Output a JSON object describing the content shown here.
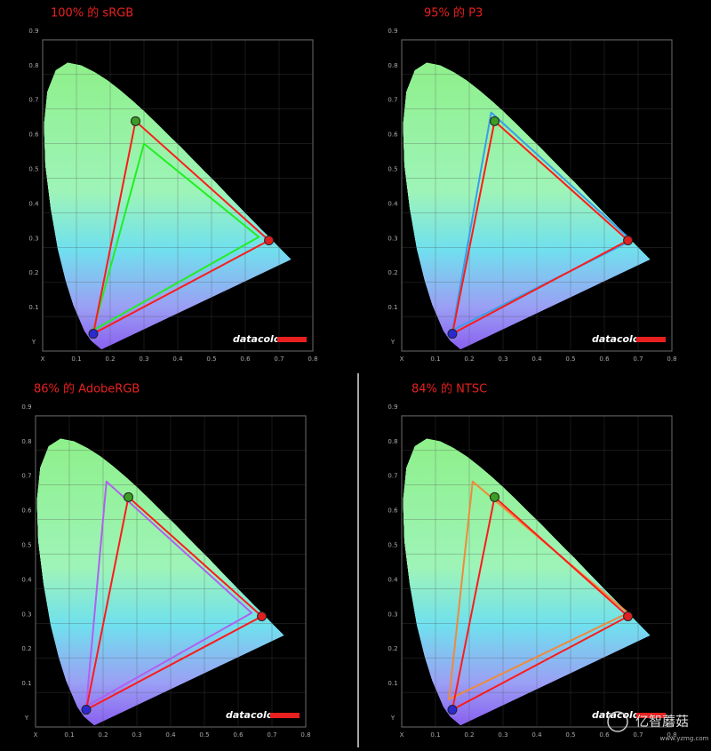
{
  "chart_data": [
    {
      "type": "gamut",
      "title": "100% 的 sRGB",
      "logo": "datacolor",
      "xlim": [
        0,
        0.8
      ],
      "ylim": [
        0,
        0.9
      ],
      "xticks": [
        {
          "value": 0,
          "label": "X"
        },
        0.1,
        0.2,
        0.3,
        0.4,
        0.5,
        0.6,
        0.7,
        0.8
      ],
      "yticks": [
        {
          "value": 0,
          "label": "Y"
        },
        0.1,
        0.2,
        0.3,
        0.4,
        0.5,
        0.6,
        0.7,
        0.8,
        0.9
      ],
      "series": [
        {
          "color": "#ff1a1a",
          "marker_colors": [
            "#e02020",
            "#3c9c24",
            "#2a2ad0"
          ],
          "x": [
            0.67,
            0.275,
            0.15
          ],
          "values": [
            0.32,
            0.665,
            0.05
          ]
        },
        {
          "color": "#22ee22",
          "x": [
            0.64,
            0.3,
            0.15
          ],
          "values": [
            0.33,
            0.6,
            0.06
          ]
        }
      ]
    },
    {
      "type": "gamut",
      "title": "95% 的 P3",
      "logo": "datacolor",
      "xlim": [
        0,
        0.8
      ],
      "ylim": [
        0,
        0.9
      ],
      "xticks": [
        {
          "value": 0,
          "label": "X"
        },
        0.1,
        0.2,
        0.3,
        0.4,
        0.5,
        0.6,
        0.7,
        0.8
      ],
      "yticks": [
        {
          "value": 0,
          "label": "Y"
        },
        0.1,
        0.2,
        0.3,
        0.4,
        0.5,
        0.6,
        0.7,
        0.8,
        0.9
      ],
      "series": [
        {
          "color": "#ff1a1a",
          "marker_colors": [
            "#e02020",
            "#3c9c24",
            "#2a2ad0"
          ],
          "x": [
            0.67,
            0.275,
            0.15
          ],
          "values": [
            0.32,
            0.665,
            0.05
          ]
        },
        {
          "color": "#3a9ee8",
          "x": [
            0.68,
            0.265,
            0.15
          ],
          "values": [
            0.32,
            0.69,
            0.06
          ]
        }
      ]
    },
    {
      "type": "gamut",
      "title": "86% 的 AdobeRGB",
      "logo": "datacolor",
      "xlim": [
        0,
        0.8
      ],
      "ylim": [
        0,
        0.9
      ],
      "xticks": [
        {
          "value": 0,
          "label": "X"
        },
        0.1,
        0.2,
        0.3,
        0.4,
        0.5,
        0.6,
        0.7,
        0.8
      ],
      "yticks": [
        {
          "value": 0,
          "label": "Y"
        },
        0.1,
        0.2,
        0.3,
        0.4,
        0.5,
        0.6,
        0.7,
        0.8,
        0.9
      ],
      "series": [
        {
          "color": "#ff1a1a",
          "marker_colors": [
            "#e02020",
            "#3c9c24",
            "#2a2ad0"
          ],
          "x": [
            0.67,
            0.275,
            0.15
          ],
          "values": [
            0.32,
            0.665,
            0.05
          ]
        },
        {
          "color": "#b060f0",
          "x": [
            0.64,
            0.21,
            0.15
          ],
          "values": [
            0.33,
            0.71,
            0.06
          ]
        }
      ]
    },
    {
      "type": "gamut",
      "title": "84% 的 NTSC",
      "logo": "datacolor",
      "xlim": [
        0,
        0.8
      ],
      "ylim": [
        0,
        0.9
      ],
      "xticks": [
        {
          "value": 0,
          "label": "X"
        },
        0.1,
        0.2,
        0.3,
        0.4,
        0.5,
        0.6,
        0.7,
        0.8
      ],
      "yticks": [
        {
          "value": 0,
          "label": "Y"
        },
        0.1,
        0.2,
        0.3,
        0.4,
        0.5,
        0.6,
        0.7,
        0.8,
        0.9
      ],
      "series": [
        {
          "color": "#ff1a1a",
          "marker_colors": [
            "#e02020",
            "#3c9c24",
            "#2a2ad0"
          ],
          "x": [
            0.67,
            0.275,
            0.15
          ],
          "values": [
            0.32,
            0.665,
            0.05
          ]
        },
        {
          "color": "#f08a3a",
          "x": [
            0.67,
            0.21,
            0.14
          ],
          "values": [
            0.33,
            0.71,
            0.08
          ]
        }
      ]
    }
  ],
  "watermark": {
    "name": "亿智蘑菇",
    "url": "www.yzmg.com"
  }
}
